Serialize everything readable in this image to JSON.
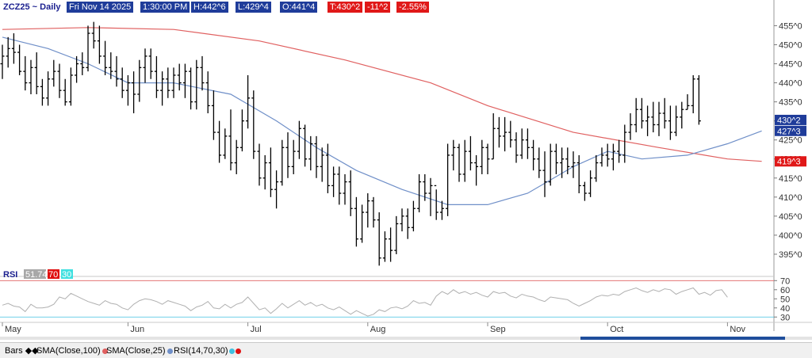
{
  "header": {
    "symbol": "ZCZ25 ~ Daily",
    "date": "Fri Nov 14 2025",
    "time": "1:30:00 PM",
    "high": "H:442^6",
    "low": "L:429^4",
    "open": "O:441^4",
    "last": "T:430^2",
    "change": "-11^2",
    "pct": "-2.55%"
  },
  "colors": {
    "sma100": "#e06060",
    "sma25": "#6f8fc8",
    "bars": "#000000",
    "rsi": "#b0b0b0",
    "rsi_label_bg": "#a8a8a8",
    "rsi_70_bg": "#e01010",
    "rsi_30_bg": "#40e0e0",
    "header_blue": "#1f3c9a",
    "header_red": "#e01818"
  },
  "price_tags": [
    {
      "label": "430^2",
      "value": 430.25,
      "color": "#1f3c9a"
    },
    {
      "label": "427^3",
      "value": 427.375,
      "color": "#1f3c9a"
    },
    {
      "label": "419^3",
      "value": 419.375,
      "color": "#e01818"
    }
  ],
  "rsi_legend": {
    "name": "RSI",
    "value": "51.74",
    "upper": "70",
    "lower": "30"
  },
  "toolbar": {
    "bars": "Bars",
    "sma100": "SMA(Close,100)",
    "sma25": "SMA(Close,25)",
    "rsi": "RSI(14,70,30)"
  },
  "chart_data": [
    {
      "type": "ohlc",
      "title": "ZCZ25 ~ Daily",
      "ylim": [
        390,
        458
      ],
      "yticks": [
        "395^0",
        "400^0",
        "405^0",
        "410^0",
        "415^0",
        "420^0",
        "425^0",
        "430^0",
        "435^0",
        "440^0",
        "445^0",
        "450^0",
        "455^0"
      ],
      "ytick_values": [
        395,
        400,
        405,
        410,
        415,
        420,
        425,
        430,
        435,
        440,
        445,
        450,
        455
      ],
      "months": [
        "May",
        "Jun",
        "Jul",
        "Aug",
        "Sep",
        "Oct",
        "Nov"
      ],
      "month_bar_index": [
        0,
        22,
        43,
        64,
        85,
        106,
        127
      ],
      "bars": [
        [
          445,
          450,
          441,
          447
        ],
        [
          447,
          452,
          444,
          449
        ],
        [
          449,
          453,
          445,
          448
        ],
        [
          448,
          450,
          442,
          443
        ],
        [
          443,
          447,
          438,
          440
        ],
        [
          440,
          446,
          437,
          444
        ],
        [
          444,
          448,
          437,
          439
        ],
        [
          439,
          441,
          434,
          436
        ],
        [
          436,
          443,
          434,
          441
        ],
        [
          441,
          446,
          439,
          443
        ],
        [
          443,
          445,
          436,
          438
        ],
        [
          438,
          441,
          434,
          435
        ],
        [
          435,
          444,
          434,
          442
        ],
        [
          442,
          447,
          440,
          445
        ],
        [
          445,
          448,
          442,
          444
        ],
        [
          444,
          455,
          443,
          453
        ],
        [
          453,
          456,
          449,
          451
        ],
        [
          451,
          455,
          445,
          447
        ],
        [
          447,
          451,
          442,
          444
        ],
        [
          444,
          448,
          441,
          443
        ],
        [
          443,
          447,
          439,
          441
        ],
        [
          441,
          444,
          436,
          438
        ],
        [
          438,
          442,
          434,
          440
        ],
        [
          440,
          443,
          432,
          437
        ],
        [
          437,
          446,
          435,
          444
        ],
        [
          444,
          449,
          440,
          447
        ],
        [
          447,
          449,
          441,
          443
        ],
        [
          443,
          447,
          436,
          438
        ],
        [
          438,
          443,
          434,
          441
        ],
        [
          441,
          444,
          436,
          438
        ],
        [
          438,
          444,
          436,
          442
        ],
        [
          442,
          445,
          438,
          440
        ],
        [
          440,
          445,
          436,
          443
        ],
        [
          443,
          444,
          433,
          435
        ],
        [
          435,
          446,
          433,
          444
        ],
        [
          444,
          447,
          438,
          440
        ],
        [
          440,
          443,
          432,
          434
        ],
        [
          434,
          438,
          425,
          427
        ],
        [
          427,
          430,
          419,
          421
        ],
        [
          421,
          428,
          420,
          426
        ],
        [
          426,
          433,
          417,
          419
        ],
        [
          419,
          425,
          416,
          423
        ],
        [
          423,
          433,
          422,
          430
        ],
        [
          430,
          442,
          428,
          436
        ],
        [
          436,
          438,
          420,
          422
        ],
        [
          422,
          424,
          413,
          415
        ],
        [
          415,
          421,
          412,
          419
        ],
        [
          419,
          423,
          410,
          412
        ],
        [
          412,
          417,
          407,
          414
        ],
        [
          414,
          425,
          413,
          423
        ],
        [
          423,
          427,
          415,
          418
        ],
        [
          418,
          425,
          416,
          422
        ],
        [
          422,
          430,
          420,
          428
        ],
        [
          428,
          429,
          418,
          420
        ],
        [
          420,
          426,
          417,
          424
        ],
        [
          424,
          426,
          415,
          418
        ],
        [
          418,
          423,
          414,
          421
        ],
        [
          421,
          424,
          411,
          413
        ],
        [
          413,
          418,
          410,
          416
        ],
        [
          416,
          418,
          408,
          411
        ],
        [
          411,
          416,
          408,
          414
        ],
        [
          414,
          417,
          405,
          407
        ],
        [
          407,
          410,
          397,
          399
        ],
        [
          399,
          408,
          398,
          406
        ],
        [
          406,
          411,
          402,
          409
        ],
        [
          409,
          410,
          402,
          404
        ],
        [
          404,
          406,
          392,
          394
        ],
        [
          394,
          401,
          393,
          399
        ],
        [
          399,
          402,
          393,
          396
        ],
        [
          396,
          405,
          395,
          403
        ],
        [
          403,
          407,
          401,
          405
        ],
        [
          405,
          407,
          399,
          402
        ],
        [
          402,
          409,
          401,
          407
        ],
        [
          407,
          416,
          406,
          414
        ],
        [
          414,
          416,
          409,
          411
        ],
        [
          411,
          415,
          405,
          413
        ],
        [
          413,
          412,
          404,
          406
        ],
        [
          406,
          409,
          404,
          407
        ],
        [
          407,
          424,
          405,
          421
        ],
        [
          421,
          425,
          417,
          423
        ],
        [
          423,
          424,
          414,
          416
        ],
        [
          416,
          425,
          414,
          422
        ],
        [
          422,
          426,
          417,
          419
        ],
        [
          419,
          421,
          413,
          418
        ],
        [
          418,
          425,
          416,
          423
        ],
        [
          423,
          424,
          416,
          420
        ],
        [
          420,
          432,
          420,
          428
        ],
        [
          428,
          431,
          423,
          426
        ],
        [
          426,
          431,
          422,
          427
        ],
        [
          427,
          430,
          423,
          425
        ],
        [
          425,
          427,
          419,
          421
        ],
        [
          421,
          428,
          420,
          425
        ],
        [
          425,
          428,
          420,
          423
        ],
        [
          423,
          425,
          417,
          420
        ],
        [
          420,
          423,
          415,
          417
        ],
        [
          417,
          422,
          410,
          414
        ],
        [
          414,
          424,
          413,
          422
        ],
        [
          422,
          424,
          416,
          419
        ],
        [
          419,
          423,
          415,
          420
        ],
        [
          420,
          423,
          416,
          418
        ],
        [
          418,
          422,
          415,
          419
        ],
        [
          419,
          421,
          411,
          413
        ],
        [
          413,
          414,
          409,
          411
        ],
        [
          411,
          417,
          410,
          415
        ],
        [
          415,
          421,
          414,
          419
        ],
        [
          419,
          423,
          418,
          421
        ],
        [
          421,
          424,
          418,
          420
        ],
        [
          420,
          424,
          417,
          422
        ],
        [
          422,
          425,
          419,
          421
        ],
        [
          421,
          429,
          419,
          427
        ],
        [
          427,
          432,
          425,
          429
        ],
        [
          429,
          436,
          427,
          433
        ],
        [
          433,
          436,
          428,
          430
        ],
        [
          430,
          434,
          426,
          431
        ],
        [
          431,
          435,
          427,
          429
        ],
        [
          429,
          435,
          426,
          432
        ],
        [
          432,
          436,
          428,
          430
        ],
        [
          430,
          434,
          425,
          427
        ],
        [
          427,
          434,
          426,
          431
        ],
        [
          431,
          435,
          428,
          433
        ],
        [
          433,
          437,
          433,
          434
        ],
        [
          434,
          442,
          432,
          441
        ],
        [
          441,
          442,
          429,
          430
        ]
      ],
      "series": [
        {
          "name": "SMA(Close,100)",
          "values": [
            [
              0,
              454
            ],
            [
              15,
              454.5
            ],
            [
              30,
              454
            ],
            [
              45,
              451
            ],
            [
              60,
              446
            ],
            [
              75,
              440
            ],
            [
              85,
              434
            ],
            [
              100,
              427
            ],
            [
              115,
              423
            ],
            [
              127,
              420
            ],
            [
              133,
              419.375
            ]
          ]
        },
        {
          "name": "SMA(Close,25)",
          "values": [
            [
              0,
              452
            ],
            [
              8,
              449
            ],
            [
              15,
              445
            ],
            [
              22,
              440
            ],
            [
              30,
              440
            ],
            [
              40,
              437
            ],
            [
              48,
              430
            ],
            [
              55,
              423
            ],
            [
              62,
              417
            ],
            [
              70,
              412
            ],
            [
              78,
              408
            ],
            [
              85,
              408
            ],
            [
              92,
              411
            ],
            [
              100,
              418
            ],
            [
              106,
              422
            ],
            [
              112,
              420
            ],
            [
              120,
              421
            ],
            [
              127,
              424
            ],
            [
              133,
              427.375
            ]
          ]
        }
      ]
    },
    {
      "type": "line",
      "title": "RSI",
      "ylim": [
        25,
        72
      ],
      "yticks": [
        "30",
        "40",
        "50",
        "60",
        "70"
      ],
      "ytick_values": [
        30,
        40,
        50,
        60,
        70
      ],
      "levels": [
        70,
        30
      ],
      "series": [
        {
          "name": "RSI",
          "values": [
            43,
            45,
            42,
            41,
            36,
            44,
            40,
            40,
            41,
            44,
            52,
            50,
            56,
            53,
            50,
            47,
            45,
            43,
            48,
            45,
            44,
            40,
            38,
            44,
            48,
            50,
            49,
            47,
            44,
            48,
            46,
            44,
            42,
            37,
            41,
            43,
            47,
            40,
            39,
            44,
            40,
            44,
            46,
            52,
            45,
            38,
            40,
            34,
            39,
            45,
            40,
            44,
            48,
            43,
            46,
            42,
            44,
            40,
            38,
            41,
            37,
            33,
            37,
            34,
            31,
            33,
            38,
            36,
            40,
            41,
            39,
            42,
            48,
            45,
            46,
            43,
            53,
            58,
            55,
            60,
            56,
            58,
            55,
            57,
            54,
            52,
            58,
            56,
            57,
            53,
            51,
            55,
            53,
            52,
            49,
            47,
            52,
            51,
            50,
            49,
            45,
            42,
            45,
            48,
            52,
            54,
            53,
            55,
            54,
            58,
            60,
            62,
            59,
            57,
            60,
            58,
            61,
            60,
            55,
            58,
            60,
            62,
            55,
            57,
            54,
            59,
            60,
            51.74
          ]
        }
      ]
    }
  ]
}
